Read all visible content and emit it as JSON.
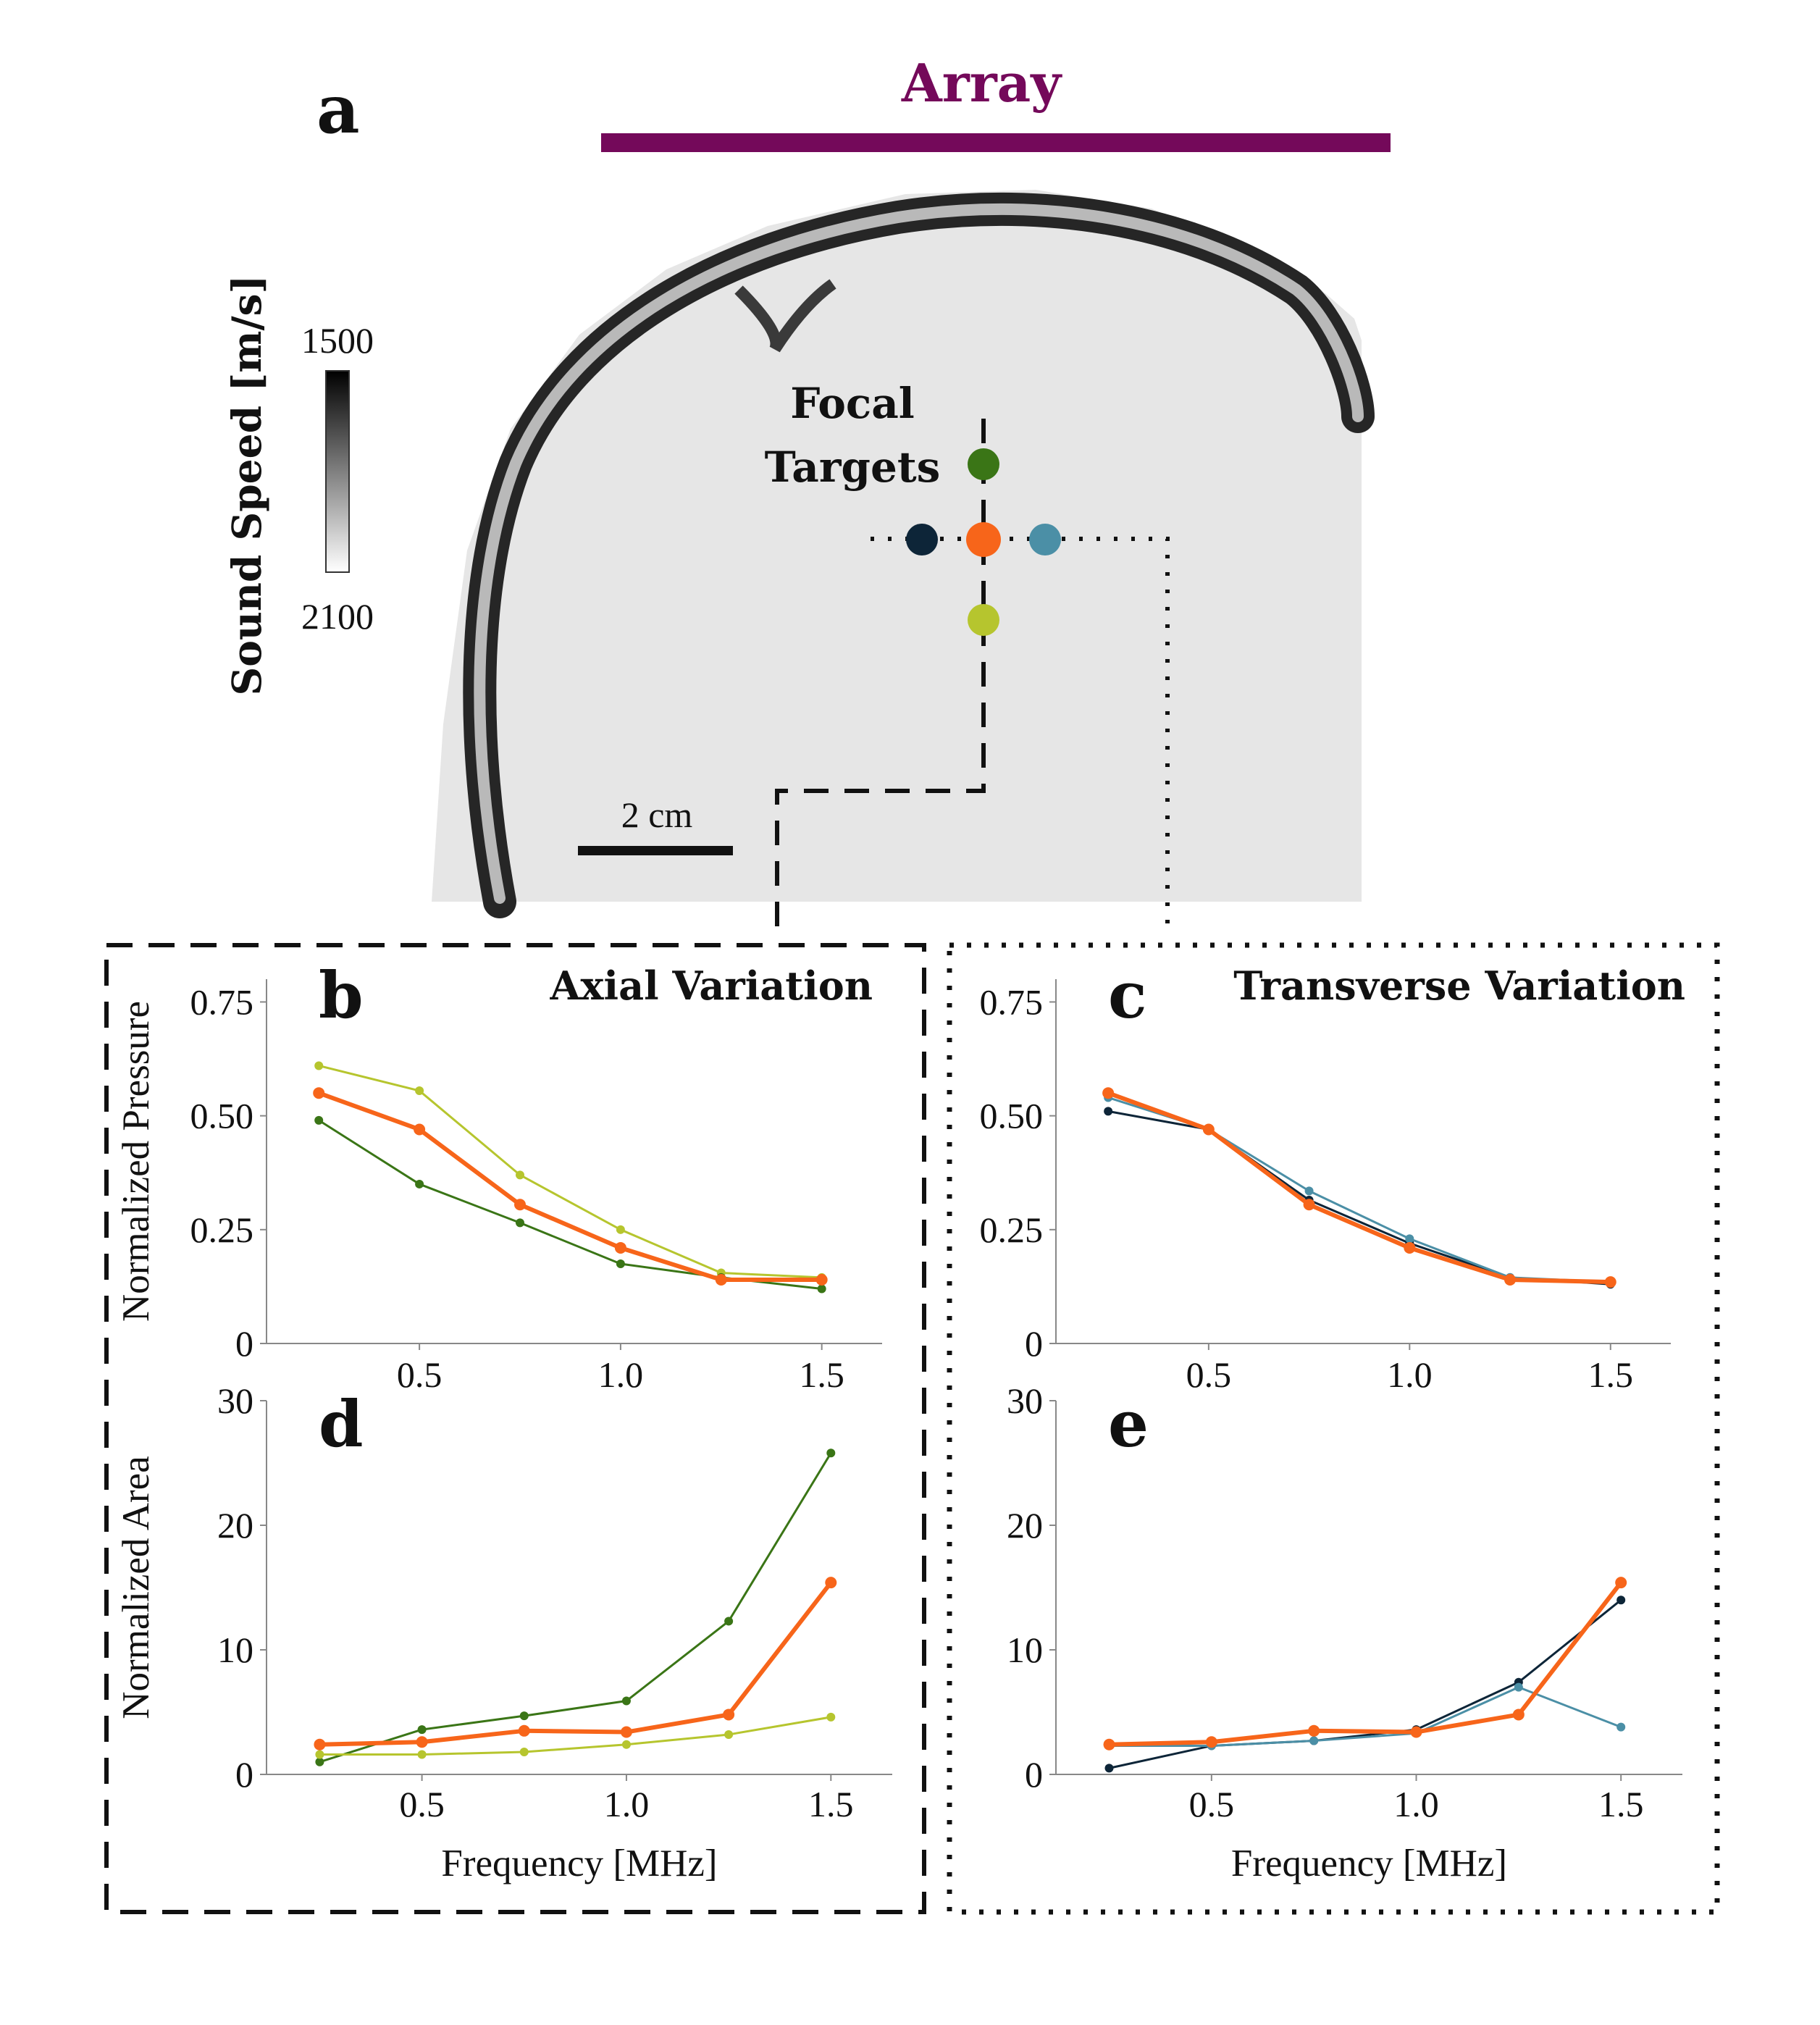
{
  "panel_a": {
    "letter": "a",
    "array_label": "Array",
    "array_color": "#74095a",
    "colorbar_label": "Sound Speed [m/s]",
    "colorbar_top": "1500",
    "colorbar_bottom": "2100",
    "focal_label_1": "Focal",
    "focal_label_2": "Targets",
    "scale_label": "2 cm"
  },
  "colors": {
    "center": "#f7651a",
    "top": "#3a7516",
    "bottom": "#b6c52e",
    "left": "#0d2538",
    "right": "#4b8fa6"
  },
  "chart_data": [
    {
      "id": "b",
      "letter": "b",
      "title": "Axial Variation",
      "type": "line",
      "ylabel": "Normalized Pressure",
      "xlabel": "",
      "xlim": [
        0.12,
        1.65
      ],
      "ylim": [
        0,
        0.8
      ],
      "xticks": [
        "0.5",
        "1.0",
        "1.5"
      ],
      "yticks": [
        "0",
        "0.25",
        "0.50",
        "0.75"
      ],
      "x": [
        0.25,
        0.5,
        0.75,
        1.0,
        1.25,
        1.5
      ],
      "series": [
        {
          "color": "#b6c52e",
          "values": [
            0.61,
            0.555,
            0.37,
            0.25,
            0.155,
            0.145
          ]
        },
        {
          "color": "#3a7516",
          "values": [
            0.49,
            0.35,
            0.265,
            0.175,
            0.145,
            0.12
          ]
        },
        {
          "color": "#f7651a",
          "values": [
            0.55,
            0.47,
            0.305,
            0.21,
            0.14,
            0.14
          ]
        }
      ]
    },
    {
      "id": "c",
      "letter": "c",
      "title": "Transverse Variation",
      "type": "line",
      "ylabel": "",
      "xlabel": "",
      "xlim": [
        0.12,
        1.65
      ],
      "ylim": [
        0,
        0.8
      ],
      "xticks": [
        "0.5",
        "1.0",
        "1.5"
      ],
      "yticks": [
        "0",
        "0.25",
        "0.50",
        "0.75"
      ],
      "x": [
        0.25,
        0.5,
        0.75,
        1.0,
        1.25,
        1.5
      ],
      "series": [
        {
          "color": "#0d2538",
          "values": [
            0.51,
            0.47,
            0.315,
            0.22,
            0.145,
            0.13
          ]
        },
        {
          "color": "#4b8fa6",
          "values": [
            0.54,
            0.47,
            0.335,
            0.23,
            0.145,
            0.135
          ]
        },
        {
          "color": "#f7651a",
          "values": [
            0.55,
            0.47,
            0.305,
            0.21,
            0.14,
            0.135
          ]
        }
      ]
    },
    {
      "id": "d",
      "letter": "d",
      "title": "",
      "type": "line",
      "ylabel": "Normalized Area",
      "xlabel": "Frequency [MHz]",
      "xlim": [
        0.12,
        1.65
      ],
      "ylim": [
        0,
        30
      ],
      "xticks": [
        "0.5",
        "1.0",
        "1.5"
      ],
      "yticks": [
        "0",
        "10",
        "20",
        "30"
      ],
      "x": [
        0.25,
        0.5,
        0.75,
        1.0,
        1.25,
        1.5
      ],
      "series": [
        {
          "color": "#3a7516",
          "values": [
            1.0,
            3.6,
            4.7,
            5.9,
            12.3,
            25.8
          ]
        },
        {
          "color": "#b6c52e",
          "values": [
            1.6,
            1.6,
            1.8,
            2.4,
            3.2,
            4.6
          ]
        },
        {
          "color": "#f7651a",
          "values": [
            2.4,
            2.6,
            3.5,
            3.4,
            4.8,
            15.4
          ]
        }
      ]
    },
    {
      "id": "e",
      "letter": "e",
      "title": "",
      "type": "line",
      "ylabel": "",
      "xlabel": "Frequency [MHz]",
      "xlim": [
        0.12,
        1.65
      ],
      "ylim": [
        0,
        30
      ],
      "xticks": [
        "0.5",
        "1.0",
        "1.5"
      ],
      "yticks": [
        "0",
        "10",
        "20",
        "30"
      ],
      "x": [
        0.25,
        0.5,
        0.75,
        1.0,
        1.25,
        1.5
      ],
      "series": [
        {
          "color": "#0d2538",
          "values": [
            0.5,
            2.3,
            2.7,
            3.6,
            7.4,
            14.0
          ]
        },
        {
          "color": "#4b8fa6",
          "values": [
            2.3,
            2.3,
            2.7,
            3.3,
            7.0,
            3.8
          ]
        },
        {
          "color": "#f7651a",
          "values": [
            2.4,
            2.6,
            3.5,
            3.4,
            4.8,
            15.4
          ]
        }
      ]
    }
  ]
}
